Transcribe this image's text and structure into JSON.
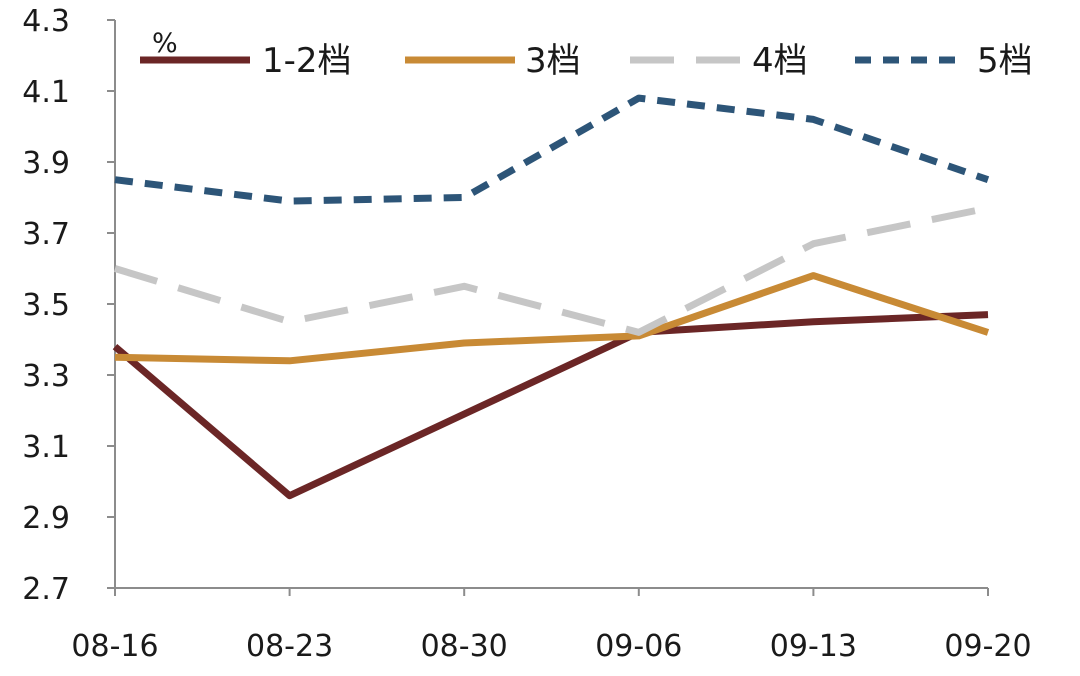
{
  "chart_data": {
    "type": "line",
    "unit_label": "%",
    "categories": [
      "08-16",
      "08-23",
      "08-30",
      "09-06",
      "09-13",
      "09-20"
    ],
    "ylim": [
      2.7,
      4.3
    ],
    "yticks": [
      "2.7",
      "2.9",
      "3.1",
      "3.3",
      "3.5",
      "3.7",
      "3.9",
      "4.1",
      "4.3"
    ],
    "grid": false,
    "legend_position": "top",
    "series": [
      {
        "name": "1-2档",
        "color": "#6b2626",
        "style": "solid",
        "values": [
          3.38,
          2.96,
          3.19,
          3.42,
          3.45,
          3.47
        ]
      },
      {
        "name": "3档",
        "color": "#c88a35",
        "style": "solid",
        "values": [
          3.35,
          3.34,
          3.39,
          3.41,
          3.58,
          3.42
        ]
      },
      {
        "name": "4档",
        "color": "#c6c6c6",
        "style": "long-dash",
        "values": [
          3.6,
          3.45,
          3.55,
          3.42,
          3.67,
          3.77
        ]
      },
      {
        "name": "5档",
        "color": "#2d5578",
        "style": "short-dash",
        "values": [
          3.85,
          3.79,
          3.8,
          4.08,
          4.02,
          3.85
        ]
      }
    ]
  }
}
